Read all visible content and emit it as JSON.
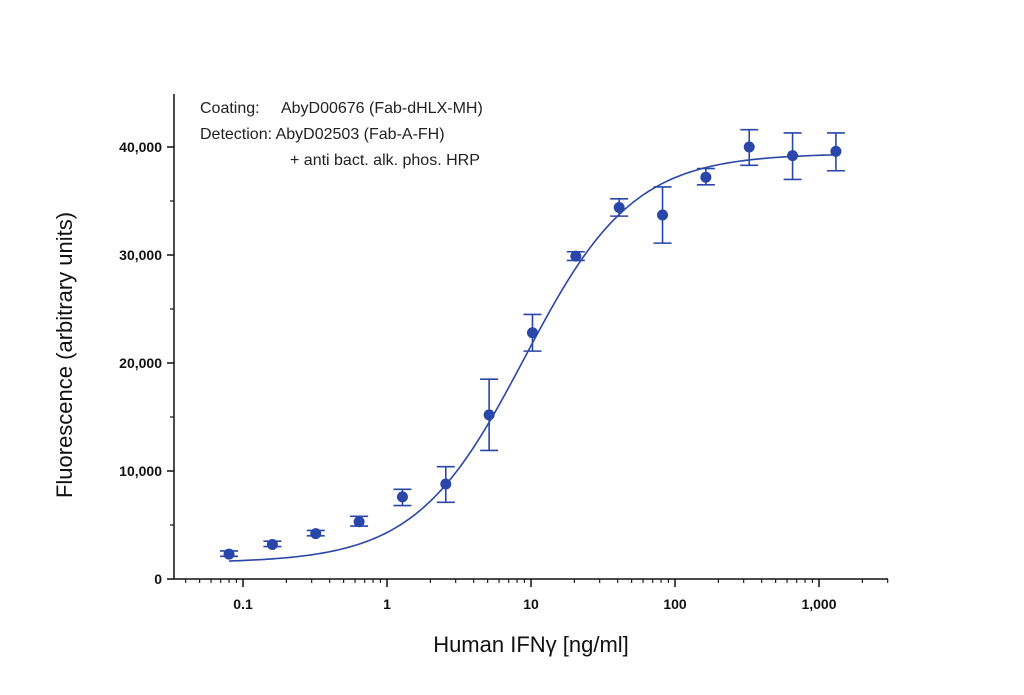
{
  "chart_data": {
    "type": "scatter",
    "title": "",
    "xlabel": "Human IFNγ [ng/ml]",
    "ylabel": "Fluorescence (arbitrary units)",
    "x_scale": "log",
    "xlim": [
      0.033,
      3000
    ],
    "ylim": [
      0,
      45000
    ],
    "x_ticks": [
      {
        "value": 0.1,
        "label": "0.1"
      },
      {
        "value": 1,
        "label": "1"
      },
      {
        "value": 10,
        "label": "10"
      },
      {
        "value": 100,
        "label": "100"
      },
      {
        "value": 1000,
        "label": "1,000"
      }
    ],
    "y_ticks": [
      {
        "value": 0,
        "label": "0"
      },
      {
        "value": 10000,
        "label": "10,000"
      },
      {
        "value": 20000,
        "label": "20,000"
      },
      {
        "value": 30000,
        "label": "30,000"
      },
      {
        "value": 40000,
        "label": "40,000"
      }
    ],
    "grid": false,
    "legend": "none",
    "annotation_lines": [
      "Coating:     AbyD00676 (Fab-dHLX-MH)",
      "Detection: AbyD02503 (Fab-A-FH)",
      "+ anti bact. alk. phos. HRP"
    ],
    "series": [
      {
        "color": "#2a46a8",
        "points": [
          {
            "x": 0.08,
            "y": 2300,
            "err_low": 2100,
            "err_high": 2600
          },
          {
            "x": 0.16,
            "y": 3200,
            "err_low": 3000,
            "err_high": 3500
          },
          {
            "x": 0.32,
            "y": 4200,
            "err_low": 4000,
            "err_high": 4500
          },
          {
            "x": 0.64,
            "y": 5300,
            "err_low": 4900,
            "err_high": 5800
          },
          {
            "x": 1.28,
            "y": 7600,
            "err_low": 6800,
            "err_high": 8300
          },
          {
            "x": 2.56,
            "y": 8800,
            "err_low": 7100,
            "err_high": 10400
          },
          {
            "x": 5.12,
            "y": 15200,
            "err_low": 11900,
            "err_high": 18500
          },
          {
            "x": 10.24,
            "y": 22800,
            "err_low": 21100,
            "err_high": 24500
          },
          {
            "x": 20.48,
            "y": 29900,
            "err_low": 29500,
            "err_high": 30300
          },
          {
            "x": 40.96,
            "y": 34400,
            "err_low": 33600,
            "err_high": 35200
          },
          {
            "x": 81.92,
            "y": 33700,
            "err_low": 31100,
            "err_high": 36300
          },
          {
            "x": 163.84,
            "y": 37200,
            "err_low": 36500,
            "err_high": 38000
          },
          {
            "x": 327.68,
            "y": 40000,
            "err_low": 38300,
            "err_high": 41600
          },
          {
            "x": 655.36,
            "y": 39200,
            "err_low": 37000,
            "err_high": 41300
          },
          {
            "x": 1310.72,
            "y": 39600,
            "err_low": 37800,
            "err_high": 41300
          }
        ],
        "fit_curve": {
          "model": "4PL",
          "bottom": 1500,
          "top": 39400,
          "ec50": 9,
          "hill": 1.15,
          "x_range": [
            0.08,
            1310.72
          ]
        }
      }
    ]
  }
}
